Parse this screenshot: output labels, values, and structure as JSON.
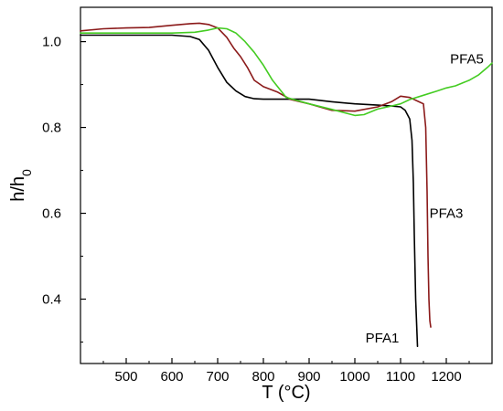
{
  "chart_data": {
    "type": "line",
    "xlabel": "T (°C)",
    "ylabel": "h/h0",
    "xlim": [
      400,
      1300
    ],
    "ylim": [
      0.25,
      1.08
    ],
    "x_ticks": [
      500,
      600,
      700,
      800,
      900,
      1000,
      1100,
      1200
    ],
    "x_tick_labels": [
      "500",
      "600",
      "700",
      "800",
      "900",
      "1000",
      "1100",
      "1200"
    ],
    "y_ticks": [
      0.4,
      0.6,
      0.8,
      1.0
    ],
    "y_tick_labels": [
      "0.4",
      "0.6",
      "0.8",
      "1.0"
    ],
    "grid": false,
    "series": [
      {
        "name": "PFA1",
        "color": "#000000",
        "x": [
          400,
          500,
          600,
          640,
          660,
          680,
          700,
          720,
          740,
          760,
          780,
          800,
          850,
          900,
          950,
          1000,
          1050,
          1080,
          1100,
          1110,
          1120,
          1125,
          1128,
          1130,
          1133,
          1137
        ],
        "y": [
          1.015,
          1.015,
          1.015,
          1.012,
          1.005,
          0.98,
          0.94,
          0.905,
          0.885,
          0.872,
          0.867,
          0.866,
          0.866,
          0.866,
          0.86,
          0.855,
          0.852,
          0.85,
          0.848,
          0.84,
          0.82,
          0.77,
          0.67,
          0.55,
          0.4,
          0.29
        ]
      },
      {
        "name": "PFA3",
        "color": "#8b1a1a",
        "x": [
          400,
          450,
          500,
          550,
          600,
          640,
          660,
          680,
          700,
          720,
          735,
          750,
          765,
          780,
          800,
          830,
          860,
          900,
          950,
          1000,
          1050,
          1080,
          1100,
          1120,
          1140,
          1150,
          1155,
          1158,
          1160,
          1162,
          1164,
          1166
        ],
        "y": [
          1.025,
          1.03,
          1.032,
          1.033,
          1.038,
          1.042,
          1.043,
          1.04,
          1.032,
          1.01,
          0.985,
          0.965,
          0.94,
          0.91,
          0.895,
          0.883,
          0.865,
          0.855,
          0.84,
          0.838,
          0.848,
          0.86,
          0.873,
          0.87,
          0.86,
          0.855,
          0.8,
          0.65,
          0.5,
          0.4,
          0.35,
          0.335
        ]
      },
      {
        "name": "PFA5",
        "color": "#44cc22",
        "x": [
          400,
          500,
          600,
          650,
          680,
          700,
          720,
          740,
          760,
          780,
          800,
          820,
          850,
          900,
          950,
          1000,
          1020,
          1050,
          1080,
          1100,
          1120,
          1150,
          1180,
          1200,
          1220,
          1250,
          1270,
          1290,
          1300
        ],
        "y": [
          1.02,
          1.02,
          1.02,
          1.022,
          1.027,
          1.032,
          1.03,
          1.02,
          1.0,
          0.975,
          0.945,
          0.91,
          0.87,
          0.855,
          0.842,
          0.828,
          0.83,
          0.843,
          0.85,
          0.855,
          0.865,
          0.875,
          0.885,
          0.892,
          0.897,
          0.91,
          0.922,
          0.94,
          0.95
        ]
      }
    ],
    "annotations": [
      {
        "text": "PFA5",
        "x": 1245,
        "y": 0.96
      },
      {
        "text": "PFA3",
        "x": 1200,
        "y": 0.6
      },
      {
        "text": "PFA1",
        "x": 1060,
        "y": 0.31
      }
    ]
  }
}
